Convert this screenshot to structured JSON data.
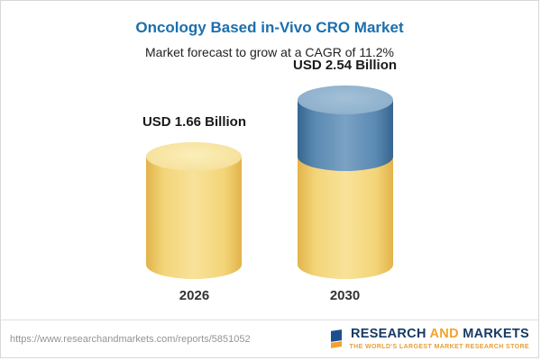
{
  "chart_data": {
    "type": "bar",
    "variant": "cylinder-stacked",
    "title": "Oncology Based in-Vivo CRO Market",
    "subtitle": "Market forecast to grow at a CAGR of 11.2%",
    "categories": [
      "2026",
      "2030"
    ],
    "values": [
      1.66,
      2.54
    ],
    "value_labels": [
      "USD 1.66 Billion",
      "USD 2.54 Billion"
    ],
    "unit": "USD Billion",
    "cagr": "11.2%",
    "legend": "none",
    "colors": {
      "base_segment": "#f3d478",
      "growth_segment": "#5a89b2",
      "title": "#1c6fad"
    }
  },
  "footer": {
    "url": "https://www.researchandmarkets.com/reports/5851052",
    "logo": {
      "word1": "RESEARCH",
      "word2": "AND",
      "word3": "MARKETS",
      "tagline": "THE WORLD'S LARGEST MARKET RESEARCH STORE"
    }
  }
}
